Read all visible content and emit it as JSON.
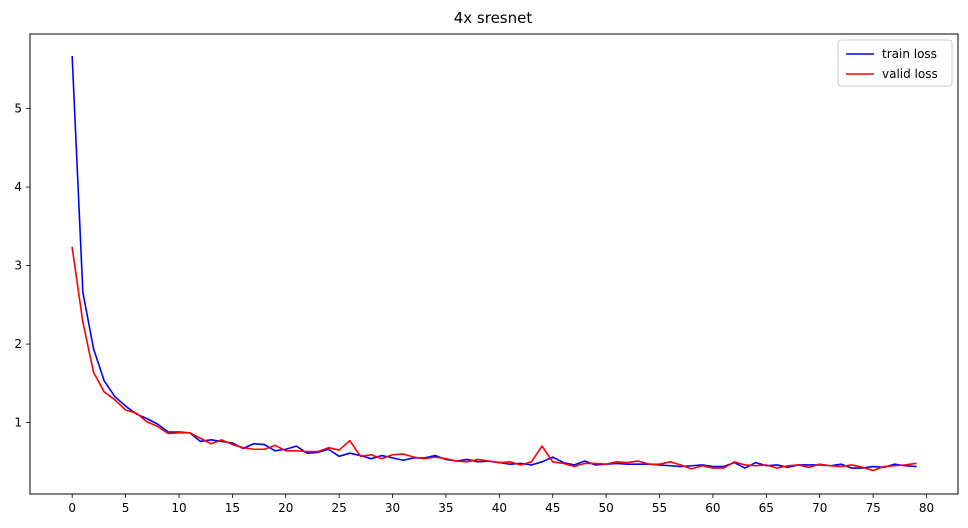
{
  "chart_data": {
    "type": "line",
    "title": "4x sresnet",
    "xlabel": "",
    "ylabel": "",
    "xlim": [
      -3.95,
      82.95
    ],
    "ylim": [
      0.09,
      5.95
    ],
    "xticks": [
      0,
      5,
      10,
      15,
      20,
      25,
      30,
      35,
      40,
      45,
      50,
      55,
      60,
      65,
      70,
      75,
      80
    ],
    "yticks": [
      1,
      2,
      3,
      4,
      5
    ],
    "grid": false,
    "legend_position": "top-right",
    "series": [
      {
        "name": "train loss",
        "color": "#0000ff",
        "x": [
          0,
          1,
          2,
          3,
          4,
          5,
          6,
          7,
          8,
          9,
          10,
          11,
          12,
          13,
          14,
          15,
          16,
          17,
          18,
          19,
          20,
          21,
          22,
          23,
          24,
          25,
          26,
          27,
          28,
          29,
          30,
          31,
          32,
          33,
          34,
          35,
          36,
          37,
          38,
          39,
          40,
          41,
          42,
          43,
          44,
          45,
          46,
          47,
          48,
          49,
          50,
          51,
          52,
          53,
          54,
          55,
          56,
          57,
          58,
          59,
          60,
          61,
          62,
          63,
          64,
          65,
          66,
          67,
          68,
          69,
          70,
          71,
          72,
          73,
          74,
          75,
          76,
          77,
          78,
          79
        ],
        "values": [
          5.66,
          2.66,
          1.94,
          1.53,
          1.33,
          1.21,
          1.11,
          1.05,
          0.98,
          0.88,
          0.88,
          0.87,
          0.76,
          0.78,
          0.76,
          0.74,
          0.67,
          0.73,
          0.72,
          0.64,
          0.66,
          0.7,
          0.61,
          0.62,
          0.66,
          0.57,
          0.61,
          0.58,
          0.54,
          0.58,
          0.55,
          0.52,
          0.55,
          0.55,
          0.58,
          0.53,
          0.51,
          0.53,
          0.5,
          0.51,
          0.49,
          0.47,
          0.48,
          0.46,
          0.5,
          0.56,
          0.49,
          0.46,
          0.51,
          0.46,
          0.47,
          0.48,
          0.47,
          0.47,
          0.47,
          0.46,
          0.45,
          0.44,
          0.45,
          0.46,
          0.44,
          0.44,
          0.49,
          0.42,
          0.49,
          0.45,
          0.46,
          0.43,
          0.46,
          0.46,
          0.46,
          0.45,
          0.47,
          0.42,
          0.42,
          0.44,
          0.43,
          0.47,
          0.45,
          0.44
        ]
      },
      {
        "name": "valid loss",
        "color": "#ff0000",
        "x": [
          0,
          1,
          2,
          3,
          4,
          5,
          6,
          7,
          8,
          9,
          10,
          11,
          12,
          13,
          14,
          15,
          16,
          17,
          18,
          19,
          20,
          21,
          22,
          23,
          24,
          25,
          26,
          27,
          28,
          29,
          30,
          31,
          32,
          33,
          34,
          35,
          36,
          37,
          38,
          39,
          40,
          41,
          42,
          43,
          44,
          45,
          46,
          47,
          48,
          49,
          50,
          51,
          52,
          53,
          54,
          55,
          56,
          57,
          58,
          59,
          60,
          61,
          62,
          63,
          64,
          65,
          66,
          67,
          68,
          69,
          70,
          71,
          72,
          73,
          74,
          75,
          76,
          77,
          78,
          79
        ],
        "values": [
          3.23,
          2.28,
          1.64,
          1.39,
          1.29,
          1.16,
          1.12,
          1.01,
          0.95,
          0.86,
          0.87,
          0.87,
          0.8,
          0.73,
          0.78,
          0.72,
          0.68,
          0.66,
          0.66,
          0.71,
          0.64,
          0.64,
          0.63,
          0.63,
          0.68,
          0.65,
          0.77,
          0.57,
          0.59,
          0.54,
          0.59,
          0.6,
          0.56,
          0.54,
          0.56,
          0.54,
          0.51,
          0.5,
          0.53,
          0.51,
          0.49,
          0.5,
          0.46,
          0.5,
          0.7,
          0.5,
          0.48,
          0.44,
          0.48,
          0.48,
          0.47,
          0.5,
          0.49,
          0.51,
          0.47,
          0.47,
          0.5,
          0.46,
          0.41,
          0.45,
          0.42,
          0.42,
          0.5,
          0.46,
          0.45,
          0.46,
          0.42,
          0.45,
          0.46,
          0.43,
          0.47,
          0.45,
          0.44,
          0.46,
          0.43,
          0.39,
          0.44,
          0.45,
          0.46,
          0.48
        ]
      }
    ]
  }
}
